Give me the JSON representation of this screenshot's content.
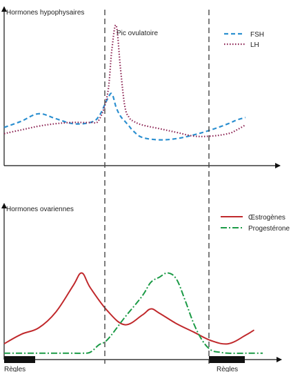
{
  "chart_data": [
    {
      "type": "line",
      "ylabel": "Hormones hypophysaires",
      "annotation": "Pic ovulatoire",
      "legend_position": "top-right",
      "x": [
        0,
        2,
        4,
        6,
        8,
        10,
        11,
        12,
        12.5,
        13,
        13.5,
        14,
        14.5,
        15,
        16,
        18,
        20,
        22,
        24,
        26,
        27,
        28
      ],
      "xlim": [
        0,
        32
      ],
      "ylim": [
        0,
        10
      ],
      "series": [
        {
          "name": "FSH",
          "color": "#2b8fd0",
          "dash": "dashed",
          "values": [
            1.8,
            2.3,
            2.9,
            2.5,
            2.1,
            2.2,
            2.7,
            4.1,
            4.5,
            3.4,
            2.7,
            2.3,
            1.9,
            1.5,
            1.0,
            0.8,
            0.9,
            1.2,
            1.6,
            2.1,
            2.4,
            2.6
          ]
        },
        {
          "name": "LH",
          "color": "#8b2252",
          "dash": "dotted",
          "values": [
            1.3,
            1.6,
            1.9,
            2.1,
            2.2,
            2.2,
            2.4,
            4.5,
            8.1,
            10.0,
            6.5,
            3.5,
            2.6,
            2.3,
            2.0,
            1.7,
            1.4,
            1.1,
            1.1,
            1.3,
            1.6,
            2.0
          ]
        }
      ]
    },
    {
      "type": "line",
      "ylabel": "Hormones ovariennes",
      "legend_position": "top-right",
      "xlim": [
        0,
        32
      ],
      "ylim": [
        0,
        10
      ],
      "series": [
        {
          "name": "Œstrogènes",
          "color": "#c0282b",
          "dash": "solid",
          "x": [
            0,
            2,
            4,
            6,
            8,
            9,
            10,
            12,
            14,
            16,
            17,
            18,
            20,
            22,
            24,
            26,
            28,
            29
          ],
          "values": [
            1.5,
            2.4,
            3.0,
            4.5,
            7.0,
            8.2,
            6.8,
            4.6,
            3.3,
            4.2,
            4.8,
            4.4,
            3.4,
            2.6,
            1.8,
            1.5,
            2.3,
            2.8
          ]
        },
        {
          "name": "Progestérone",
          "color": "#1a9a45",
          "dash": "dashdot",
          "x": [
            0,
            2,
            4,
            6,
            8,
            9,
            10,
            11,
            12,
            14,
            16,
            17,
            18,
            19,
            20,
            21,
            22,
            23,
            24,
            25,
            26,
            28,
            30
          ],
          "values": [
            0.6,
            0.6,
            0.6,
            0.6,
            0.6,
            0.6,
            0.7,
            1.4,
            1.9,
            4.0,
            6.0,
            7.3,
            7.8,
            8.2,
            7.6,
            5.6,
            3.4,
            1.8,
            0.9,
            0.7,
            0.6,
            0.6,
            0.6
          ]
        }
      ]
    }
  ],
  "regles_label_left": "Règles",
  "regles_label_right": "Règles"
}
